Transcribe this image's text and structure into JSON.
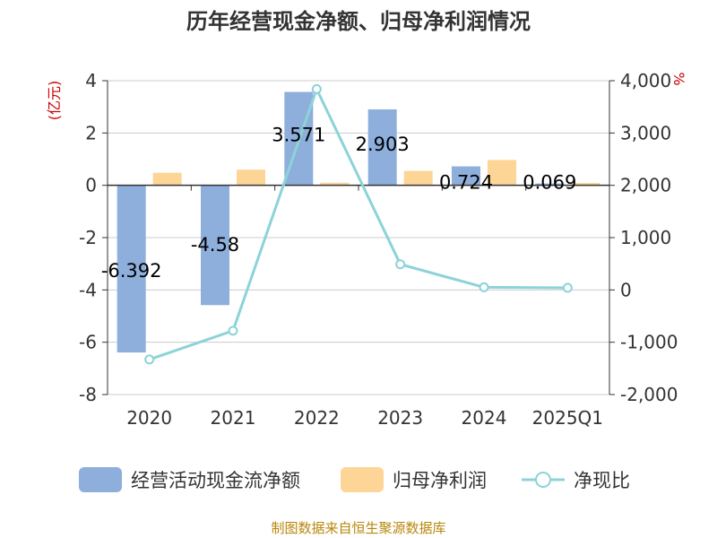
{
  "chart_data": {
    "type": "bar",
    "title": "历年经营现金净额、归母净利润情况",
    "categories": [
      "2020",
      "2021",
      "2022",
      "2023",
      "2024",
      "2025Q1"
    ],
    "left_unit": "(亿元)",
    "right_unit": "%",
    "left_axis": {
      "min": -8,
      "max": 4,
      "ticks": [
        "-8",
        "-6",
        "-4",
        "-2",
        "0",
        "2",
        "4"
      ]
    },
    "right_axis": {
      "min": -2000,
      "max": 4000,
      "ticks": [
        "-2,000",
        "-1,000",
        "0",
        "1,000",
        "2,000",
        "3,000",
        "4,000"
      ]
    },
    "series": [
      {
        "name": "经营活动现金流净额",
        "type": "bar",
        "axis": "left",
        "color": "#8eaedc",
        "values": [
          -6.392,
          -4.58,
          3.571,
          2.903,
          0.724,
          0.069
        ],
        "labels": [
          "-6.392",
          "-4.58",
          "3.571",
          "2.903",
          "0.724",
          "0.069"
        ]
      },
      {
        "name": "归母净利润",
        "type": "bar",
        "axis": "left",
        "color": "#fdd596",
        "values": [
          0.48,
          0.6,
          0.1,
          0.55,
          0.97,
          0.09
        ]
      },
      {
        "name": "净现比",
        "type": "line",
        "axis": "right",
        "color": "#8cd3d9",
        "values": [
          -1330,
          -780,
          3840,
          490,
          50,
          40
        ]
      }
    ],
    "grid": true,
    "legend": "bottom"
  },
  "source_note": "制图数据来自恒生聚源数据库"
}
